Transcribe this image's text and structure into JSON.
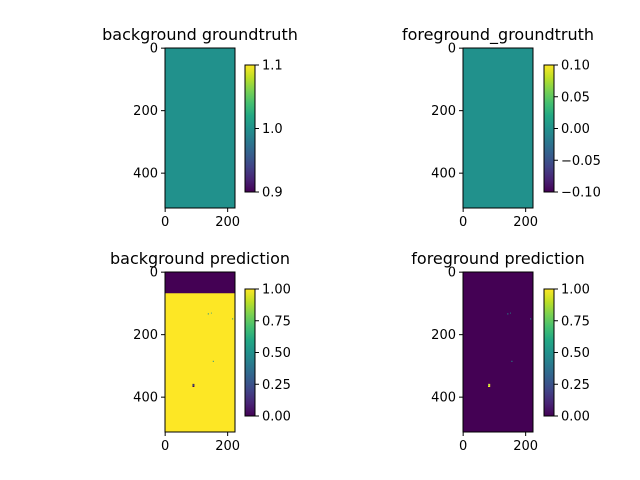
{
  "figure": {
    "colormap": "viridis",
    "colors": {
      "viridis_0": "#440154",
      "viridis_50": "#21918c",
      "viridis_100": "#fde725",
      "background": "#ffffff"
    }
  },
  "chart_data": [
    {
      "type": "heatmap",
      "name": "panel-bg-gt",
      "title": "background groundtruth",
      "xlabel": "",
      "ylabel": "",
      "image_size": {
        "width": 224,
        "height": 512
      },
      "xticks": [
        "0",
        "200"
      ],
      "xtick_values": [
        0,
        200
      ],
      "yticks": [
        "0",
        "200",
        "400"
      ],
      "ytick_values": [
        0,
        200,
        400
      ],
      "uniform_value": 1.0,
      "regions": [],
      "colorbar": {
        "min": 0.9,
        "max": 1.1,
        "ticks": [
          "0.9",
          "1.0",
          "1.1"
        ],
        "tick_values": [
          0.9,
          1.0,
          1.1
        ]
      }
    },
    {
      "type": "heatmap",
      "name": "panel-fg-gt",
      "title": "foreground_groundtruth",
      "xlabel": "",
      "ylabel": "",
      "image_size": {
        "width": 224,
        "height": 512
      },
      "xticks": [
        "0",
        "200"
      ],
      "xtick_values": [
        0,
        200
      ],
      "yticks": [
        "0",
        "200",
        "400"
      ],
      "ytick_values": [
        0,
        200,
        400
      ],
      "uniform_value": 0.0,
      "regions": [],
      "colorbar": {
        "min": -0.1,
        "max": 0.1,
        "ticks": [
          "0.10",
          "0.05",
          "0.00",
          "−0.05",
          "−0.10"
        ],
        "tick_values": [
          0.1,
          0.05,
          0.0,
          -0.05,
          -0.1
        ]
      }
    },
    {
      "type": "heatmap",
      "name": "panel-bg-pred",
      "title": "background prediction",
      "xlabel": "",
      "ylabel": "",
      "image_size": {
        "width": 224,
        "height": 512
      },
      "xticks": [
        "0",
        "200"
      ],
      "xtick_values": [
        0,
        200
      ],
      "yticks": [
        "0",
        "200",
        "400"
      ],
      "ytick_values": [
        0,
        200,
        400
      ],
      "uniform_value": 1.0,
      "regions": [
        {
          "x0": 0,
          "x1": 224,
          "y0": 0,
          "y1": 68,
          "value": 0.0
        },
        {
          "x0": 88,
          "x1": 94,
          "y0": 358,
          "y1": 368,
          "value": 0.0
        },
        {
          "x0": 89,
          "x1": 92,
          "y0": 360,
          "y1": 364,
          "value": 0.5
        },
        {
          "x0": 137,
          "x1": 140,
          "y0": 132,
          "y1": 136,
          "value": 0.5
        },
        {
          "x0": 147,
          "x1": 149,
          "y0": 130,
          "y1": 133,
          "value": 0.5
        },
        {
          "x0": 153,
          "x1": 156,
          "y0": 284,
          "y1": 288,
          "value": 0.5
        },
        {
          "x0": 215,
          "x1": 218,
          "y0": 148,
          "y1": 152,
          "value": 0.5
        }
      ],
      "colorbar": {
        "min": 0.0,
        "max": 1.0,
        "ticks": [
          "1.00",
          "0.75",
          "0.50",
          "0.25",
          "0.00"
        ],
        "tick_values": [
          1.0,
          0.75,
          0.5,
          0.25,
          0.0
        ]
      }
    },
    {
      "type": "heatmap",
      "name": "panel-fg-pred",
      "title": "foreground prediction",
      "xlabel": "",
      "ylabel": "",
      "image_size": {
        "width": 224,
        "height": 512
      },
      "xticks": [
        "0",
        "200"
      ],
      "xtick_values": [
        0,
        200
      ],
      "yticks": [
        "0",
        "200",
        "400"
      ],
      "ytick_values": [
        0,
        200,
        400
      ],
      "uniform_value": 0.0,
      "regions": [
        {
          "x0": 80,
          "x1": 87,
          "y0": 358,
          "y1": 368,
          "value": 1.0
        },
        {
          "x0": 81,
          "x1": 84,
          "y0": 360,
          "y1": 364,
          "value": 0.5
        },
        {
          "x0": 142,
          "x1": 145,
          "y0": 132,
          "y1": 136,
          "value": 0.5
        },
        {
          "x0": 151,
          "x1": 153,
          "y0": 130,
          "y1": 133,
          "value": 0.5
        },
        {
          "x0": 155,
          "x1": 158,
          "y0": 284,
          "y1": 288,
          "value": 0.5
        },
        {
          "x0": 215,
          "x1": 218,
          "y0": 148,
          "y1": 152,
          "value": 0.5
        }
      ],
      "colorbar": {
        "min": 0.0,
        "max": 1.0,
        "ticks": [
          "1.00",
          "0.75",
          "0.50",
          "0.25",
          "0.00"
        ],
        "tick_values": [
          1.0,
          0.75,
          0.5,
          0.25,
          0.0
        ]
      }
    }
  ]
}
